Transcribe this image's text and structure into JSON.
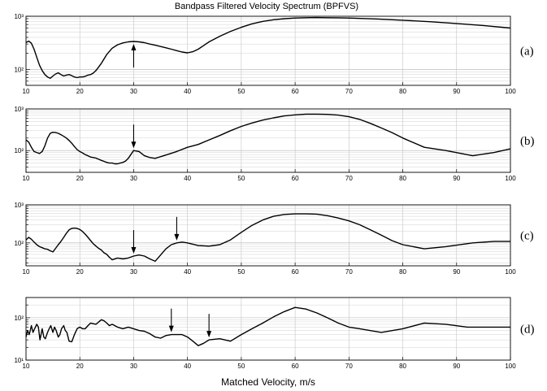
{
  "figure": {
    "title": "Bandpass Filtered Velocity Spectrum (BPFVS)",
    "xlabel": "Matched Velocity, m/s"
  },
  "chart_data": [
    {
      "type": "line",
      "panel_label": "(a)",
      "xlim": [
        10,
        100
      ],
      "ylim": [
        50,
        1000
      ],
      "yscale": "log",
      "y_tick_labels": [
        "10²",
        "10³"
      ],
      "y_tick_values": [
        100,
        1000
      ],
      "x_ticks": [
        10,
        20,
        30,
        40,
        50,
        60,
        70,
        80,
        90,
        100
      ],
      "grid": true,
      "series": [
        {
          "x": [
            10,
            10.5,
            11,
            11.5,
            12,
            12.5,
            13,
            13.5,
            14,
            14.5,
            15,
            15.5,
            16,
            16.5,
            17,
            17.5,
            18,
            18.5,
            19,
            19.5,
            20,
            20.5,
            21,
            21.5,
            22,
            22.5,
            23,
            24,
            25,
            26,
            27,
            28,
            29,
            30,
            31,
            32,
            33,
            34,
            35,
            36,
            37,
            38,
            39,
            40,
            41,
            42,
            43,
            44,
            46,
            48,
            50,
            52,
            54,
            56,
            58,
            60,
            62,
            64,
            66,
            68,
            70,
            75,
            80,
            85,
            90,
            95,
            100
          ],
          "y": [
            320,
            340,
            310,
            240,
            170,
            120,
            95,
            80,
            72,
            68,
            75,
            82,
            86,
            80,
            75,
            78,
            80,
            76,
            72,
            70,
            72,
            72,
            74,
            78,
            80,
            85,
            95,
            130,
            190,
            250,
            290,
            315,
            330,
            335,
            330,
            318,
            300,
            285,
            270,
            255,
            240,
            225,
            212,
            205,
            215,
            240,
            280,
            330,
            420,
            520,
            620,
            720,
            800,
            860,
            900,
            925,
            940,
            945,
            940,
            935,
            925,
            890,
            840,
            790,
            730,
            670,
            600
          ]
        }
      ],
      "annotations": [
        {
          "x": 30,
          "direction": "up"
        }
      ]
    },
    {
      "type": "line",
      "panel_label": "(b)",
      "xlim": [
        10,
        100
      ],
      "ylim": [
        30,
        1000
      ],
      "yscale": "log",
      "y_tick_labels": [
        "10²",
        "10³"
      ],
      "y_tick_values": [
        100,
        1000
      ],
      "x_ticks": [
        10,
        20,
        30,
        40,
        50,
        60,
        70,
        80,
        90,
        100
      ],
      "grid": true,
      "series": [
        {
          "x": [
            10,
            10.5,
            11,
            11.5,
            12,
            12.5,
            13,
            13.5,
            14,
            14.5,
            15,
            15.5,
            16,
            16.5,
            17,
            17.5,
            18,
            18.5,
            19,
            19.5,
            20,
            20.5,
            21,
            21.5,
            22,
            22.5,
            23,
            23.5,
            24,
            24.5,
            25,
            25.5,
            26,
            26.5,
            27,
            27.5,
            28,
            28.5,
            29,
            30,
            31,
            32,
            33,
            34,
            36,
            38,
            40,
            42,
            44,
            46,
            48,
            50,
            52,
            54,
            56,
            58,
            60,
            62,
            64,
            66,
            68,
            70,
            72,
            74,
            76,
            78,
            80,
            84,
            88,
            93,
            97,
            100
          ],
          "y": [
            180,
            160,
            120,
            95,
            90,
            85,
            95,
            130,
            200,
            260,
            275,
            270,
            260,
            240,
            220,
            200,
            175,
            150,
            125,
            105,
            95,
            88,
            80,
            75,
            70,
            68,
            66,
            62,
            58,
            55,
            52,
            50,
            50,
            48,
            48,
            50,
            52,
            56,
            65,
            100,
            95,
            75,
            68,
            65,
            78,
            95,
            120,
            140,
            180,
            230,
            300,
            380,
            460,
            540,
            610,
            680,
            720,
            750,
            750,
            740,
            710,
            650,
            560,
            450,
            350,
            270,
            200,
            120,
            100,
            75,
            90,
            110
          ]
        }
      ],
      "annotations": [
        {
          "x": 30,
          "direction": "down"
        }
      ]
    },
    {
      "type": "line",
      "panel_label": "(c)",
      "xlim": [
        10,
        100
      ],
      "ylim": [
        25,
        1000
      ],
      "yscale": "log",
      "y_tick_labels": [
        "10²",
        "10³"
      ],
      "y_tick_values": [
        100,
        1000
      ],
      "x_ticks": [
        10,
        20,
        30,
        40,
        50,
        60,
        70,
        80,
        90,
        100
      ],
      "grid": true,
      "series": [
        {
          "x": [
            10,
            10.5,
            11,
            11.5,
            12,
            12.5,
            13,
            13.5,
            14,
            14.5,
            15,
            15.5,
            16,
            16.5,
            17,
            17.5,
            18,
            18.5,
            19,
            19.5,
            20,
            20.5,
            21,
            21.5,
            22,
            22.5,
            23,
            23.5,
            24,
            24.5,
            25,
            25.5,
            26,
            27,
            28,
            29,
            30,
            31,
            32,
            33,
            34,
            35,
            36,
            37,
            38,
            39,
            40,
            42,
            44,
            46,
            48,
            50,
            52,
            54,
            56,
            58,
            60,
            62,
            64,
            66,
            68,
            70,
            72,
            74,
            76,
            78,
            80,
            84,
            88,
            93,
            97,
            100
          ],
          "y": [
            120,
            140,
            125,
            105,
            90,
            80,
            75,
            70,
            68,
            62,
            58,
            72,
            90,
            110,
            140,
            180,
            220,
            240,
            245,
            240,
            225,
            200,
            170,
            140,
            115,
            95,
            82,
            72,
            65,
            55,
            50,
            42,
            36,
            40,
            38,
            40,
            45,
            48,
            45,
            38,
            33,
            48,
            70,
            90,
            100,
            105,
            100,
            85,
            82,
            90,
            120,
            190,
            290,
            400,
            500,
            560,
            580,
            580,
            570,
            520,
            450,
            380,
            300,
            220,
            160,
            115,
            90,
            70,
            80,
            100,
            110,
            110
          ]
        }
      ],
      "annotations": [
        {
          "x": 30,
          "direction": "down"
        },
        {
          "x": 38,
          "direction": "down"
        }
      ]
    },
    {
      "type": "line",
      "panel_label": "(d)",
      "xlim": [
        10,
        100
      ],
      "ylim": [
        10,
        300
      ],
      "yscale": "log",
      "y_tick_labels": [
        "10¹",
        "10²"
      ],
      "y_tick_values": [
        10,
        100
      ],
      "x_ticks": [
        10,
        20,
        30,
        40,
        50,
        60,
        70,
        80,
        90,
        100
      ],
      "grid": true,
      "series": [
        {
          "x": [
            10,
            10.3,
            10.6,
            11,
            11.3,
            11.6,
            12,
            12.3,
            12.6,
            13,
            13.3,
            13.6,
            14,
            14.3,
            14.6,
            15,
            15.3,
            15.6,
            16,
            16.3,
            16.6,
            17,
            17.3,
            17.6,
            18,
            18.5,
            19,
            19.5,
            20,
            20.5,
            21,
            21.5,
            22,
            23,
            24,
            24.5,
            25,
            25.5,
            26,
            27,
            28,
            29,
            30,
            31,
            32,
            33,
            34,
            35,
            36,
            37,
            38,
            39,
            40,
            41,
            42,
            43,
            44,
            46,
            48,
            50,
            52,
            54,
            56,
            58,
            60,
            62,
            64,
            66,
            68,
            70,
            72,
            76,
            80,
            84,
            88,
            92,
            96,
            100
          ],
          "y": [
            35,
            50,
            40,
            65,
            45,
            55,
            70,
            60,
            30,
            55,
            35,
            32,
            45,
            55,
            65,
            45,
            60,
            50,
            35,
            40,
            55,
            65,
            50,
            45,
            28,
            27,
            40,
            55,
            60,
            55,
            55,
            65,
            75,
            70,
            90,
            85,
            75,
            65,
            70,
            60,
            55,
            60,
            55,
            50,
            48,
            42,
            35,
            33,
            38,
            40,
            40,
            40,
            35,
            28,
            22,
            25,
            30,
            32,
            28,
            40,
            55,
            75,
            105,
            140,
            175,
            160,
            130,
            100,
            75,
            60,
            55,
            45,
            55,
            75,
            70,
            60,
            60,
            60
          ]
        }
      ],
      "annotations": [
        {
          "x": 37,
          "direction": "down"
        },
        {
          "x": 44,
          "direction": "down"
        }
      ]
    }
  ]
}
